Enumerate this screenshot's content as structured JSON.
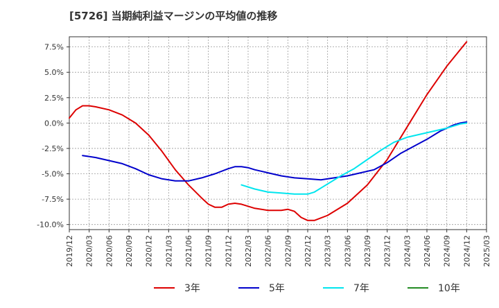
{
  "chart_data": {
    "type": "line",
    "title": "[5726]  当期純利益マージンの平均値の推移",
    "xlabel": "",
    "ylabel": "",
    "ylim": [
      -10.5,
      8.5
    ],
    "yticks": [
      7.5,
      5.0,
      2.5,
      0.0,
      -2.5,
      -5.0,
      -7.5,
      -10.0
    ],
    "ytick_labels": [
      "7.5%",
      "5.0%",
      "2.5%",
      "0.0%",
      "-2.5%",
      "-5.0%",
      "-7.5%",
      "-10.0%"
    ],
    "xticks": [
      "2019/12",
      "2020/03",
      "2020/06",
      "2020/09",
      "2020/12",
      "2021/03",
      "2021/06",
      "2021/09",
      "2021/12",
      "2022/03",
      "2022/06",
      "2022/09",
      "2022/12",
      "2023/03",
      "2023/06",
      "2023/09",
      "2023/12",
      "2024/03",
      "2024/06",
      "2024/09",
      "2024/12",
      "2025/03"
    ],
    "grid": true,
    "legend_position": "bottom",
    "series": [
      {
        "name": "3年",
        "color": "#dd0000",
        "points": [
          [
            "2019/12",
            0.5
          ],
          [
            "2020/01",
            1.3
          ],
          [
            "2020/02",
            1.7
          ],
          [
            "2020/03",
            1.7
          ],
          [
            "2020/04",
            1.6
          ],
          [
            "2020/06",
            1.3
          ],
          [
            "2020/08",
            0.8
          ],
          [
            "2020/10",
            0.0
          ],
          [
            "2020/12",
            -1.2
          ],
          [
            "2021/02",
            -2.8
          ],
          [
            "2021/04",
            -4.6
          ],
          [
            "2021/06",
            -6.1
          ],
          [
            "2021/08",
            -7.4
          ],
          [
            "2021/09",
            -8.0
          ],
          [
            "2021/10",
            -8.3
          ],
          [
            "2021/11",
            -8.3
          ],
          [
            "2021/12",
            -8.0
          ],
          [
            "2022/01",
            -7.9
          ],
          [
            "2022/02",
            -8.0
          ],
          [
            "2022/04",
            -8.4
          ],
          [
            "2022/06",
            -8.6
          ],
          [
            "2022/08",
            -8.6
          ],
          [
            "2022/09",
            -8.5
          ],
          [
            "2022/10",
            -8.7
          ],
          [
            "2022/11",
            -9.3
          ],
          [
            "2022/12",
            -9.6
          ],
          [
            "2023/01",
            -9.6
          ],
          [
            "2023/03",
            -9.1
          ],
          [
            "2023/06",
            -7.9
          ],
          [
            "2023/09",
            -6.1
          ],
          [
            "2023/12",
            -3.6
          ],
          [
            "2024/03",
            -0.4
          ],
          [
            "2024/06",
            2.8
          ],
          [
            "2024/09",
            5.6
          ],
          [
            "2024/12",
            8.0
          ]
        ]
      },
      {
        "name": "5年",
        "color": "#0000cc",
        "points": [
          [
            "2020/02",
            -3.2
          ],
          [
            "2020/04",
            -3.4
          ],
          [
            "2020/06",
            -3.7
          ],
          [
            "2020/08",
            -4.0
          ],
          [
            "2020/10",
            -4.5
          ],
          [
            "2020/12",
            -5.1
          ],
          [
            "2021/02",
            -5.5
          ],
          [
            "2021/04",
            -5.7
          ],
          [
            "2021/06",
            -5.7
          ],
          [
            "2021/08",
            -5.4
          ],
          [
            "2021/10",
            -5.0
          ],
          [
            "2021/12",
            -4.5
          ],
          [
            "2022/01",
            -4.3
          ],
          [
            "2022/02",
            -4.3
          ],
          [
            "2022/03",
            -4.4
          ],
          [
            "2022/04",
            -4.6
          ],
          [
            "2022/06",
            -4.9
          ],
          [
            "2022/08",
            -5.2
          ],
          [
            "2022/10",
            -5.4
          ],
          [
            "2022/12",
            -5.5
          ],
          [
            "2023/02",
            -5.6
          ],
          [
            "2023/04",
            -5.4
          ],
          [
            "2023/06",
            -5.2
          ],
          [
            "2023/08",
            -4.9
          ],
          [
            "2023/10",
            -4.6
          ],
          [
            "2023/12",
            -3.9
          ],
          [
            "2024/02",
            -3.0
          ],
          [
            "2024/04",
            -2.3
          ],
          [
            "2024/06",
            -1.6
          ],
          [
            "2024/08",
            -0.8
          ],
          [
            "2024/10",
            -0.2
          ],
          [
            "2024/11",
            0.0
          ],
          [
            "2024/12",
            0.1
          ]
        ]
      },
      {
        "name": "7年",
        "color": "#00e5ee",
        "points": [
          [
            "2022/02",
            -6.1
          ],
          [
            "2022/04",
            -6.5
          ],
          [
            "2022/06",
            -6.8
          ],
          [
            "2022/08",
            -6.9
          ],
          [
            "2022/10",
            -7.0
          ],
          [
            "2022/12",
            -7.0
          ],
          [
            "2023/01",
            -6.8
          ],
          [
            "2023/03",
            -6.0
          ],
          [
            "2023/05",
            -5.2
          ],
          [
            "2023/07",
            -4.5
          ],
          [
            "2023/09",
            -3.6
          ],
          [
            "2023/11",
            -2.7
          ],
          [
            "2024/01",
            -1.9
          ],
          [
            "2024/03",
            -1.4
          ],
          [
            "2024/05",
            -1.1
          ],
          [
            "2024/07",
            -0.8
          ],
          [
            "2024/09",
            -0.5
          ],
          [
            "2024/11",
            -0.1
          ],
          [
            "2024/12",
            0.0
          ]
        ]
      },
      {
        "name": "10年",
        "color": "#228b22",
        "points": []
      }
    ]
  }
}
